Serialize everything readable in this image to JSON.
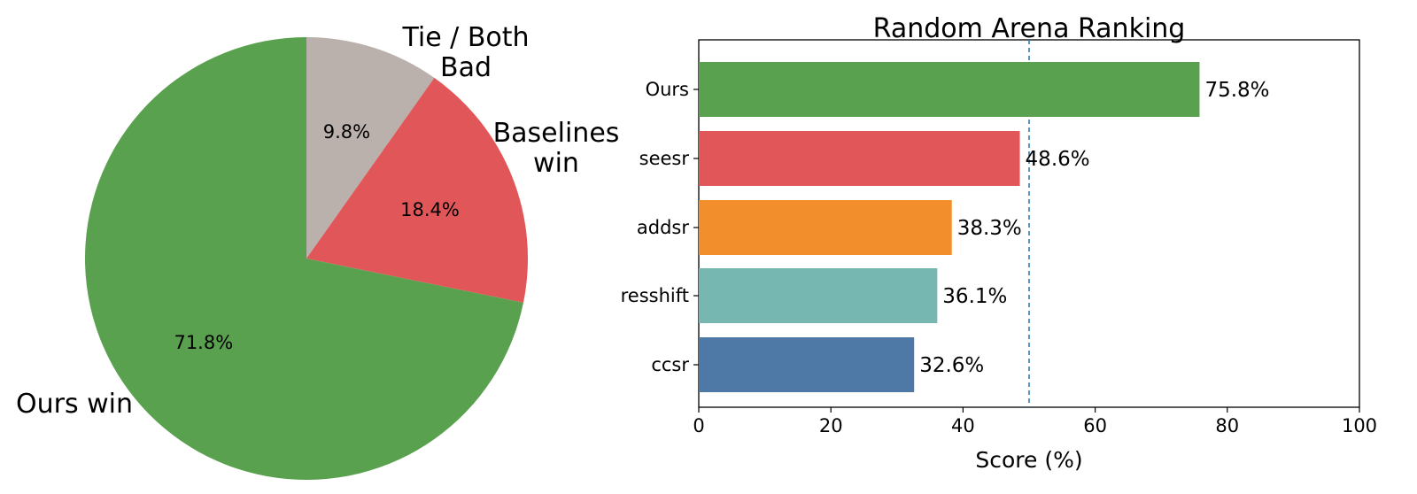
{
  "chart_data": [
    {
      "type": "pie",
      "slices": [
        {
          "label": "Ours win",
          "value": 71.8,
          "pct_label": "71.8%",
          "color": "#59a14f"
        },
        {
          "label": "Baselines win",
          "value": 18.4,
          "pct_label": "18.4%",
          "color": "#e15759"
        },
        {
          "label": "Tie / Both Bad",
          "value": 9.8,
          "pct_label": "9.8%",
          "color": "#bab0ac"
        }
      ],
      "start": "top",
      "direction": "counterclockwise-from-tie"
    },
    {
      "type": "bar",
      "orientation": "horizontal",
      "title": "Random Arena Ranking",
      "xlabel": "Score (%)",
      "ylabel": "",
      "xlim": [
        0,
        100
      ],
      "xticks": [
        "0",
        "20",
        "40",
        "60",
        "80",
        "100"
      ],
      "reference_line": {
        "value": 50,
        "style": "dashed",
        "color": "#1f77b4"
      },
      "grid": false,
      "categories": [
        "Ours",
        "seesr",
        "addsr",
        "resshift",
        "ccsr"
      ],
      "values": [
        75.8,
        48.6,
        38.3,
        36.1,
        32.6
      ],
      "value_labels": [
        "75.8%",
        "48.6%",
        "38.3%",
        "36.1%",
        "32.6%"
      ],
      "colors": [
        "#59a14f",
        "#e15759",
        "#f28e2b",
        "#76b7b2",
        "#4e79a7"
      ]
    }
  ]
}
